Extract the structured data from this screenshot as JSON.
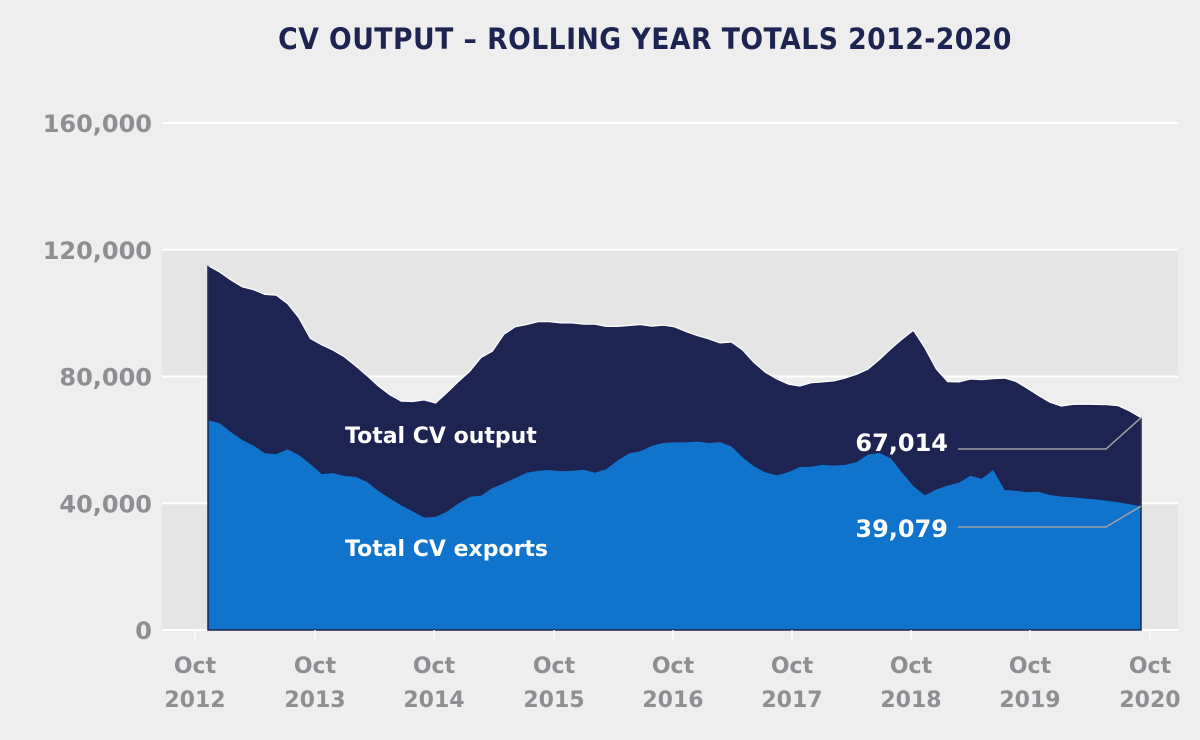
{
  "chart_data": {
    "type": "area",
    "title": "CV OUTPUT – ROLLING YEAR TOTALS 2012-2020",
    "xlabel": "",
    "ylabel": "",
    "ylim": [
      0,
      160000
    ],
    "yticks": [
      0,
      40000,
      80000,
      120000,
      160000
    ],
    "ytick_labels": [
      "0",
      "40,000",
      "80,000",
      "120,000",
      "160,000"
    ],
    "xtick_labels": [
      [
        "Oct",
        "2012"
      ],
      [
        "Oct",
        "2013"
      ],
      [
        "Oct",
        "2014"
      ],
      [
        "Oct",
        "2015"
      ],
      [
        "Oct",
        "2016"
      ],
      [
        "Oct",
        "2017"
      ],
      [
        "Oct",
        "2018"
      ],
      [
        "Oct",
        "2019"
      ],
      [
        "Oct",
        "2020"
      ]
    ],
    "x_start": "Nov 2012",
    "x_end": "Sep 2020",
    "x_unit": "month",
    "grid": true,
    "legend": "inline",
    "series": [
      {
        "name": "Total CV output",
        "color": "#1d2452",
        "values": [
          115000,
          113000,
          110500,
          108300,
          107400,
          105900,
          105700,
          103000,
          98500,
          92000,
          90000,
          88300,
          86200,
          83300,
          80200,
          76900,
          74200,
          72200,
          72100,
          72600,
          71600,
          74900,
          78400,
          81600,
          86000,
          88000,
          93300,
          95700,
          96400,
          97300,
          97300,
          96900,
          96900,
          96500,
          96500,
          95800,
          95800,
          96100,
          96400,
          95900,
          96200,
          95700,
          94200,
          92900,
          91900,
          90600,
          90900,
          88300,
          84400,
          81300,
          79200,
          77600,
          77000,
          78000,
          78300,
          78600,
          79500,
          80700,
          82300,
          85300,
          88700,
          91800,
          94600,
          89100,
          82400,
          78400,
          78300,
          79200,
          79000,
          79300,
          79500,
          78500,
          76300,
          74000,
          71900,
          70700,
          71200,
          71300,
          71200,
          71100,
          70800,
          69100,
          67014
        ]
      },
      {
        "name": "Total CV exports",
        "color": "#1174cc",
        "values": [
          66200,
          65300,
          62500,
          60000,
          58200,
          55800,
          55500,
          57000,
          55200,
          52300,
          49200,
          49500,
          48600,
          48300,
          46600,
          43800,
          41500,
          39300,
          37400,
          35500,
          35700,
          37300,
          39900,
          42000,
          42400,
          44800,
          46300,
          47900,
          49600,
          50200,
          50500,
          50100,
          50200,
          50600,
          49600,
          50700,
          53500,
          55700,
          56400,
          58100,
          59000,
          59200,
          59200,
          59500,
          59000,
          59300,
          57900,
          54400,
          51600,
          49700,
          48800,
          49800,
          51400,
          51500,
          52100,
          51900,
          52100,
          53000,
          55300,
          55900,
          54200,
          49600,
          45400,
          42500,
          44300,
          45600,
          46500,
          48700,
          47700,
          50500,
          44200,
          43900,
          43500,
          43600,
          42600,
          42100,
          41900,
          41500,
          41200,
          40800,
          40300,
          39700,
          39079
        ]
      }
    ],
    "annotations": [
      {
        "text": "67,014",
        "series": "Total CV output",
        "point": "last"
      },
      {
        "text": "39,079",
        "series": "Total CV exports",
        "point": "last"
      }
    ],
    "inline_labels": [
      "Total CV output",
      "Total CV exports"
    ]
  },
  "colors": {
    "title": "#1d2452",
    "output_area": "#1d2452",
    "exports_area": "#1174cc",
    "axis_text": "#8e8e93",
    "band_shaded": "#e5e5e5",
    "background": "#eeeeee",
    "connector": "#a0a0a0"
  }
}
